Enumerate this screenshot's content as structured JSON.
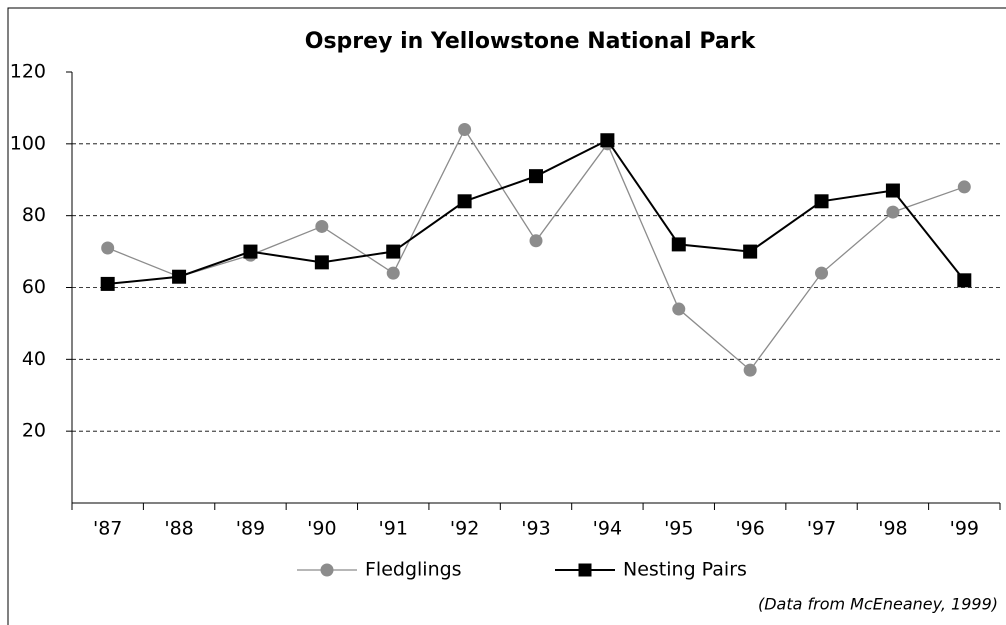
{
  "chart_data": {
    "type": "line",
    "title": "Osprey in Yellowstone National Park",
    "categories": [
      "'87",
      "'88",
      "'89",
      "'90",
      "'91",
      "'92",
      "'93",
      "'94",
      "'95",
      "'96",
      "'97",
      "'98",
      "'99"
    ],
    "series": [
      {
        "name": "Fledglings",
        "color": "#8c8c8c",
        "marker": "circle",
        "values": [
          71,
          63,
          69,
          77,
          64,
          104,
          73,
          100,
          54,
          37,
          64,
          81,
          88
        ]
      },
      {
        "name": "Nesting Pairs",
        "color": "#000000",
        "marker": "square",
        "values": [
          61,
          63,
          70,
          67,
          70,
          84,
          91,
          101,
          72,
          70,
          84,
          87,
          62
        ]
      }
    ],
    "ylim": [
      0,
      120
    ],
    "yticks": [
      20,
      40,
      60,
      80,
      100,
      120
    ],
    "grid": true,
    "annotation": "(Data from McEneaney, 1999)"
  }
}
